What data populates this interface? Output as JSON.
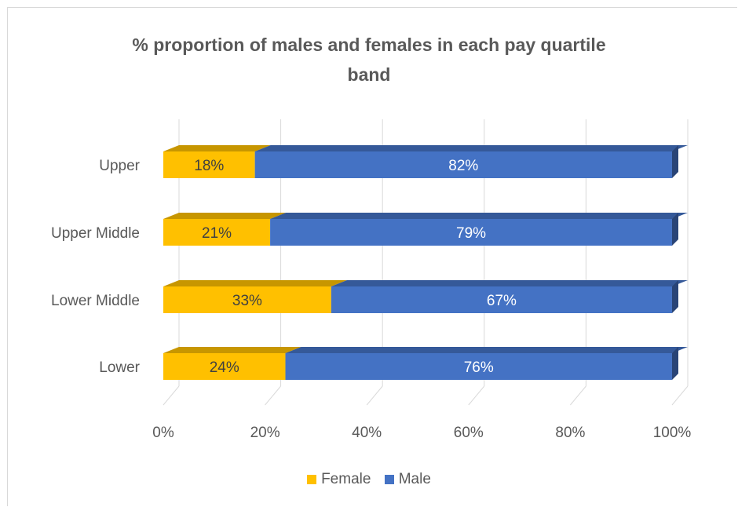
{
  "chart_data": {
    "type": "bar",
    "orientation": "horizontal",
    "stacked": true,
    "title_line1": "% proportion of males and females in each pay quartile",
    "title_line2": "band",
    "categories": [
      "Upper",
      "Upper Middle",
      "Lower Middle",
      "Lower"
    ],
    "series": [
      {
        "name": "Female",
        "values": [
          18,
          21,
          33,
          24
        ],
        "labels": [
          "18%",
          "21%",
          "33%",
          "24%"
        ],
        "color": "#FFC000"
      },
      {
        "name": "Male",
        "values": [
          82,
          79,
          67,
          76
        ],
        "labels": [
          "82%",
          "79%",
          "67%",
          "76%"
        ],
        "color": "#4472C4"
      }
    ],
    "xlim": [
      0,
      100
    ],
    "x_ticks": [
      "0%",
      "20%",
      "40%",
      "60%",
      "80%",
      "100%"
    ],
    "grid": true,
    "legend_position": "bottom"
  }
}
